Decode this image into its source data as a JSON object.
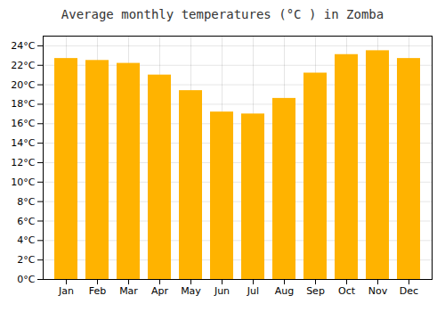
{
  "chart_data": {
    "type": "bar",
    "title": "Average monthly temperatures (°C ) in Zomba",
    "categories": [
      "Jan",
      "Feb",
      "Mar",
      "Apr",
      "May",
      "Jun",
      "Jul",
      "Aug",
      "Sep",
      "Oct",
      "Nov",
      "Dec"
    ],
    "values": [
      22.7,
      22.5,
      22.2,
      21.0,
      19.4,
      17.2,
      17.0,
      18.6,
      21.2,
      23.1,
      23.5,
      22.7
    ],
    "color": "#FFB300",
    "ylim": [
      0,
      25
    ],
    "yticks": [
      {
        "value": 0,
        "label": "0°C"
      },
      {
        "value": 2,
        "label": "2°C"
      },
      {
        "value": 4,
        "label": "4°C"
      },
      {
        "value": 6,
        "label": "6°C"
      },
      {
        "value": 8,
        "label": "8°C"
      },
      {
        "value": 10,
        "label": "10°C"
      },
      {
        "value": 12,
        "label": "12°C"
      },
      {
        "value": 14,
        "label": "14°C"
      },
      {
        "value": 16,
        "label": "16°C"
      },
      {
        "value": 18,
        "label": "18°C"
      },
      {
        "value": 20,
        "label": "20°C"
      },
      {
        "value": 22,
        "label": "22°C"
      },
      {
        "value": 24,
        "label": "24°C"
      }
    ],
    "grid": true
  }
}
